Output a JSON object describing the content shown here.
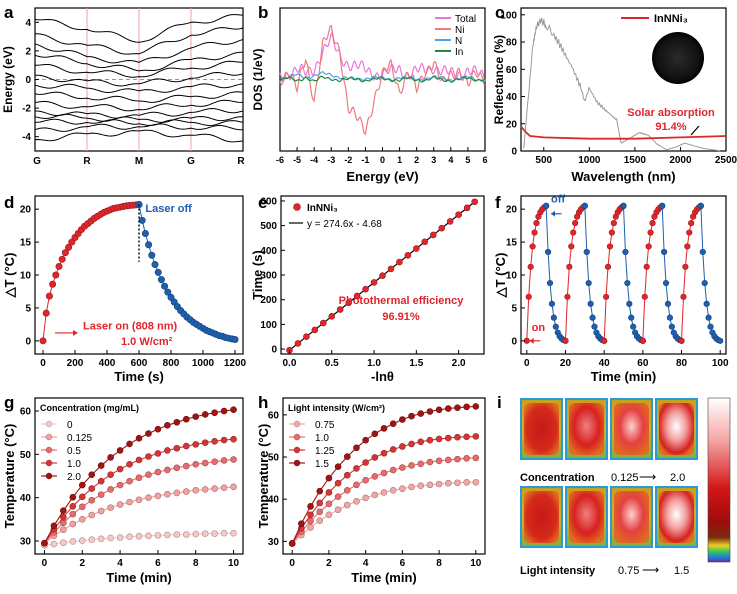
{
  "colors": {
    "red": "#e0252b",
    "blue": "#1f5fb0",
    "gray": "#9a9a9a",
    "black": "#000000",
    "pink": "#e879d8",
    "lightred": "#f07a80",
    "cyan": "#4aa3e8",
    "green": "#208a3c"
  },
  "chart_data": [
    {
      "id": "a",
      "panel_label": "a",
      "type": "line",
      "title": "",
      "xlabel": "",
      "ylabel": "Energy (eV)",
      "xticks": [
        "G",
        "R",
        "M",
        "G",
        "R"
      ],
      "ylim": [
        -5,
        5
      ],
      "yticks": [
        4,
        2,
        0,
        -2,
        -4
      ],
      "bands": [
        [
          4.2,
          3.5,
          2.6,
          4.0,
          4.5
        ],
        [
          3.2,
          2.4,
          1.8,
          3.1,
          3.6
        ],
        [
          2.5,
          1.6,
          1.2,
          2.2,
          2.8
        ],
        [
          1.7,
          1.1,
          0.6,
          1.4,
          1.9
        ],
        [
          1.0,
          0.5,
          0.2,
          0.8,
          1.2
        ],
        [
          0.3,
          -0.1,
          -0.3,
          0.1,
          0.4
        ],
        [
          -0.4,
          -0.6,
          -0.8,
          -0.5,
          -0.3
        ],
        [
          -1.0,
          -1.3,
          -1.5,
          -1.2,
          -0.9
        ],
        [
          -1.6,
          -1.9,
          -2.1,
          -1.8,
          -1.6
        ],
        [
          -2.2,
          -2.4,
          -2.5,
          -2.3,
          -2.2
        ],
        [
          -2.6,
          -2.7,
          -2.8,
          -2.7,
          -2.6
        ],
        [
          -3.0,
          -3.0,
          -3.1,
          -3.0,
          -3.0
        ],
        [
          -3.5,
          -3.3,
          -3.3,
          -3.4,
          -3.5
        ],
        [
          -4.2,
          -3.8,
          -3.6,
          -3.9,
          -4.3
        ]
      ],
      "fermi_level": 0
    },
    {
      "id": "b",
      "panel_label": "b",
      "type": "line",
      "xlabel": "Energy (eV)",
      "ylabel": "DOS (1/eV)",
      "xlim": [
        -6,
        6
      ],
      "xticks": [
        -6,
        -5,
        -4,
        -3,
        -2,
        -1,
        0,
        1,
        2,
        3,
        4,
        5,
        6
      ],
      "legend": [
        "Total",
        "Ni",
        "N",
        "In"
      ],
      "x": [
        -6,
        -5.5,
        -5,
        -4.5,
        -4,
        -3.5,
        -3,
        -2.5,
        -2,
        -1.5,
        -1,
        -0.5,
        0,
        0.5,
        1,
        1.5,
        2,
        2.5,
        3,
        3.5,
        4,
        4.5,
        5,
        5.5,
        6
      ],
      "series": [
        {
          "name": "Total",
          "values": [
            0.1,
            0.3,
            0.4,
            0.2,
            0.5,
            1.2,
            1.6,
            1.0,
            0.7,
            0.5,
            0.4,
            0.3,
            0.2,
            0.3,
            0.5,
            0.2,
            0.3,
            0.4,
            0.6,
            0.3,
            0.2,
            0.3,
            0.4,
            0.2,
            0.1
          ]
        },
        {
          "name": "Ni",
          "values": [
            0.05,
            0.4,
            -0.5,
            0.9,
            -0.8,
            1.4,
            2.0,
            1.3,
            -1.2,
            -1.7,
            -2.1,
            -0.8,
            0.1,
            0.6,
            -0.4,
            0.3,
            -0.5,
            0.4,
            0.8,
            -0.3,
            0.2,
            0.5,
            -0.3,
            0.2,
            0.1
          ]
        },
        {
          "name": "N",
          "values": [
            0.0,
            0.1,
            0.2,
            0.1,
            0.15,
            0.25,
            0.2,
            0.1,
            0.05,
            0.0,
            0.05,
            0.1,
            0.05,
            0.0,
            0.1,
            0.05,
            0.0,
            0.05,
            0.1,
            0.05,
            0.0,
            0.05,
            0.1,
            0.0,
            0.0
          ]
        },
        {
          "name": "In",
          "values": [
            0.0,
            0.05,
            -0.05,
            0.1,
            -0.1,
            0.1,
            0.05,
            -0.05,
            0.0,
            0.05,
            -0.05,
            0.0,
            0.05,
            0.0,
            -0.05,
            0.05,
            0.0,
            -0.05,
            0.05,
            0.0,
            -0.05,
            0.0,
            0.05,
            0.0,
            0.0
          ]
        }
      ]
    },
    {
      "id": "c",
      "panel_label": "c",
      "type": "line",
      "xlabel": "Wavelength (nm)",
      "ylabel": "Reflectance (%)",
      "xlim": [
        250,
        2500
      ],
      "ylim": [
        0,
        105
      ],
      "xticks": [
        500,
        1000,
        1500,
        2000,
        2500
      ],
      "yticks": [
        0,
        20,
        40,
        60,
        80,
        100
      ],
      "legend": [
        "InNNi₃"
      ],
      "solar_x": [
        280,
        330,
        380,
        420,
        470,
        520,
        600,
        700,
        800,
        900,
        950,
        1000,
        1100,
        1200,
        1300,
        1350,
        1450,
        1550,
        1650,
        1750,
        1850,
        1950,
        2050,
        2150,
        2250,
        2350,
        2450
      ],
      "solar_y": [
        2,
        40,
        80,
        95,
        100,
        96,
        90,
        78,
        66,
        50,
        38,
        48,
        36,
        30,
        24,
        6,
        10,
        14,
        12,
        5,
        1,
        3,
        6,
        4,
        2,
        1,
        0
      ],
      "reflectance_x": [
        250,
        300,
        350,
        500,
        1000,
        1500,
        2000,
        2500
      ],
      "reflectance_y": [
        18,
        14,
        11,
        10,
        9,
        9,
        10,
        11
      ],
      "annotation_title": "Solar absorption",
      "annotation_value": "91.4%"
    },
    {
      "id": "d",
      "panel_label": "d",
      "type": "scatter",
      "xlabel": "Time (s)",
      "ylabel": "△T (°C)",
      "xlim": [
        -50,
        1250
      ],
      "ylim": [
        -2,
        22
      ],
      "xticks": [
        0,
        200,
        400,
        600,
        800,
        1000,
        1200
      ],
      "yticks": [
        0,
        5,
        10,
        15,
        20
      ],
      "laser_on_x": [
        0,
        20,
        40,
        60,
        80,
        100,
        120,
        140,
        160,
        180,
        200,
        220,
        240,
        260,
        280,
        300,
        320,
        340,
        360,
        380,
        400,
        420,
        440,
        460,
        480,
        500,
        520,
        540,
        560,
        580,
        600
      ],
      "laser_on_y": [
        0,
        4.2,
        6.8,
        8.6,
        10.0,
        11.3,
        12.4,
        13.4,
        14.2,
        15.0,
        15.7,
        16.3,
        16.9,
        17.4,
        17.8,
        18.2,
        18.6,
        18.9,
        19.2,
        19.5,
        19.7,
        19.9,
        20.1,
        20.2,
        20.3,
        20.4,
        20.5,
        20.55,
        20.6,
        20.65,
        20.7
      ],
      "laser_off_x": [
        600,
        620,
        640,
        660,
        680,
        700,
        720,
        740,
        760,
        780,
        800,
        820,
        840,
        860,
        880,
        900,
        920,
        940,
        960,
        980,
        1000,
        1020,
        1040,
        1060,
        1080,
        1100,
        1120,
        1140,
        1160,
        1180,
        1200
      ],
      "laser_off_y": [
        20.7,
        18.3,
        16.3,
        14.6,
        13.0,
        11.6,
        10.4,
        9.3,
        8.3,
        7.4,
        6.6,
        5.9,
        5.2,
        4.6,
        4.1,
        3.6,
        3.2,
        2.8,
        2.5,
        2.2,
        1.9,
        1.6,
        1.4,
        1.2,
        1.0,
        0.8,
        0.7,
        0.5,
        0.4,
        0.3,
        0.2
      ],
      "laser_off_label": "Laser off",
      "laser_on_label": "Laser on (808 nm)",
      "power_label": "1.0 W/cm²"
    },
    {
      "id": "e",
      "panel_label": "e",
      "type": "scatter",
      "xlabel": "-lnθ",
      "ylabel": "Time (s)",
      "xlim": [
        -0.1,
        2.3
      ],
      "ylim": [
        -20,
        620
      ],
      "xticks": [
        0.0,
        0.5,
        1.0,
        1.5,
        2.0
      ],
      "yticks": [
        0,
        100,
        200,
        300,
        400,
        500,
        600
      ],
      "x": [
        0.0,
        0.1,
        0.2,
        0.3,
        0.4,
        0.5,
        0.6,
        0.7,
        0.8,
        0.9,
        1.0,
        1.1,
        1.2,
        1.3,
        1.4,
        1.5,
        1.6,
        1.7,
        1.8,
        1.9,
        2.0,
        2.1,
        2.19
      ],
      "slope": 274.6,
      "intercept": -4.68,
      "legend": [
        "InNNi₃",
        "y = 274.6x - 4.68"
      ],
      "annotation_title": "Photothermal efficiency",
      "annotation_value": "96.91%"
    },
    {
      "id": "f",
      "panel_label": "f",
      "type": "scatter",
      "xlabel": "Time (min)",
      "ylabel": "△T (°C)",
      "xlim": [
        -3,
        103
      ],
      "ylim": [
        -2,
        22
      ],
      "xticks": [
        0,
        20,
        40,
        60,
        80,
        100
      ],
      "yticks": [
        0,
        5,
        10,
        15,
        20
      ],
      "cycles": 5,
      "cycle_minutes": 20,
      "peak": 20.5,
      "on_label": "on",
      "off_label": "off"
    },
    {
      "id": "g",
      "panel_label": "g",
      "type": "line",
      "xlabel": "Time (min)",
      "ylabel": "Temperature (°C)",
      "xlim": [
        -0.5,
        10.5
      ],
      "ylim": [
        27,
        63
      ],
      "xticks": [
        0,
        2,
        4,
        6,
        8,
        10
      ],
      "yticks": [
        30,
        40,
        50,
        60
      ],
      "legend_title": "Concentration (mg/mL)",
      "x": [
        0,
        0.5,
        1,
        1.5,
        2,
        2.5,
        3,
        3.5,
        4,
        4.5,
        5,
        5.5,
        6,
        6.5,
        7,
        7.5,
        8,
        8.5,
        9,
        9.5,
        10
      ],
      "series": [
        {
          "name": "0",
          "values": [
            29,
            29.3,
            29.6,
            29.9,
            30.1,
            30.3,
            30.5,
            30.7,
            30.8,
            31,
            31.1,
            31.2,
            31.3,
            31.4,
            31.5,
            31.5,
            31.6,
            31.7,
            31.7,
            31.8,
            31.8
          ]
        },
        {
          "name": "0.125",
          "values": [
            29.5,
            31.2,
            32.6,
            33.9,
            35,
            36,
            36.9,
            37.7,
            38.4,
            39,
            39.5,
            40,
            40.4,
            40.8,
            41.1,
            41.4,
            41.7,
            41.9,
            42.1,
            42.3,
            42.5
          ]
        },
        {
          "name": "0.5",
          "values": [
            29.5,
            32,
            34.2,
            36.2,
            37.9,
            39.4,
            40.7,
            41.9,
            42.9,
            43.8,
            44.6,
            45.3,
            45.9,
            46.4,
            46.9,
            47.3,
            47.7,
            48,
            48.3,
            48.6,
            48.8
          ]
        },
        {
          "name": "1.0",
          "values": [
            29.5,
            32.7,
            35.5,
            38,
            40.2,
            42.1,
            43.8,
            45.3,
            46.6,
            47.7,
            48.7,
            49.5,
            50.2,
            50.9,
            51.4,
            51.9,
            52.3,
            52.7,
            53,
            53.3,
            53.5
          ]
        },
        {
          "name": "2.0",
          "values": [
            29.5,
            33.5,
            37,
            40.1,
            42.9,
            45.3,
            47.4,
            49.3,
            50.9,
            52.4,
            53.7,
            54.8,
            55.8,
            56.7,
            57.4,
            58.1,
            58.7,
            59.2,
            59.6,
            60,
            60.3
          ]
        }
      ]
    },
    {
      "id": "h",
      "panel_label": "h",
      "type": "line",
      "xlabel": "Time (min)",
      "ylabel": "Temperature (°C)",
      "xlim": [
        -0.5,
        10.5
      ],
      "ylim": [
        27,
        64
      ],
      "xticks": [
        0,
        2,
        4,
        6,
        8,
        10
      ],
      "yticks": [
        30,
        40,
        50,
        60
      ],
      "legend_title": "Light intensity (W/cm²)",
      "x": [
        0,
        0.5,
        1,
        1.5,
        2,
        2.5,
        3,
        3.5,
        4,
        4.5,
        5,
        5.5,
        6,
        6.5,
        7,
        7.5,
        8,
        8.5,
        9,
        9.5,
        10
      ],
      "series": [
        {
          "name": "0.75",
          "values": [
            29.5,
            31.5,
            33.3,
            34.9,
            36.3,
            37.5,
            38.6,
            39.5,
            40.3,
            41,
            41.6,
            42.1,
            42.5,
            42.9,
            43.2,
            43.4,
            43.6,
            43.8,
            43.9,
            44,
            44
          ]
        },
        {
          "name": "1.0",
          "values": [
            29.5,
            32.3,
            34.8,
            37,
            38.9,
            40.6,
            42.1,
            43.4,
            44.5,
            45.4,
            46.2,
            46.9,
            47.5,
            48,
            48.4,
            48.8,
            49.1,
            49.3,
            49.5,
            49.7,
            49.8
          ]
        },
        {
          "name": "1.25",
          "values": [
            29.5,
            33.1,
            36.3,
            39.1,
            41.6,
            43.8,
            45.7,
            47.3,
            48.7,
            49.9,
            50.9,
            51.8,
            52.5,
            53.1,
            53.6,
            54,
            54.3,
            54.5,
            54.7,
            54.8,
            54.9
          ]
        },
        {
          "name": "1.5",
          "values": [
            29.5,
            34.2,
            38.3,
            41.9,
            45,
            47.7,
            50.1,
            52.2,
            54,
            55.5,
            56.8,
            57.9,
            58.9,
            59.7,
            60.3,
            60.8,
            61.2,
            61.5,
            61.7,
            61.9,
            62
          ]
        }
      ]
    }
  ],
  "panel_i": {
    "panel_label": "i",
    "concentration_label": "Concentration",
    "concentration_range_start": "0.125",
    "concentration_range_end": "2.0",
    "intensity_label": "Light intensity",
    "intensity_range_start": "0.75",
    "intensity_range_end": "1.5",
    "arrow": "⟶",
    "frames": 4
  }
}
